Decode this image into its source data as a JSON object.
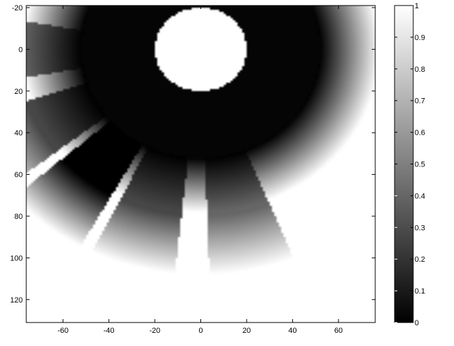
{
  "chart_data": {
    "type": "heatmap",
    "title": "",
    "xlabel": "",
    "ylabel": "",
    "xlim": [
      -76,
      76
    ],
    "ylim": [
      -21,
      131
    ],
    "y_reversed": true,
    "colormap": "gray",
    "color_range": [
      0,
      1
    ],
    "grid": false,
    "x_ticks": [
      "-60",
      "-40",
      "-20",
      "0",
      "20",
      "40",
      "60"
    ],
    "y_ticks": [
      "-20",
      "0",
      "20",
      "40",
      "60",
      "80",
      "100",
      "120"
    ],
    "colorbar_ticks": [
      "0",
      "0.1",
      "0.2",
      "0.3",
      "0.4",
      "0.5",
      "0.6",
      "0.7",
      "0.8",
      "0.9",
      "1"
    ],
    "field": {
      "center": [
        0,
        0
      ],
      "bright_disk_radius": 20,
      "bright_disk_value": 1,
      "background_value": 1,
      "dark_ring_outer_radius": 52,
      "ring_fade_radius": 78,
      "wedge_outer_radius": 108,
      "wedge_fade_length": 28,
      "wedge_angles_deg": [
        78,
        106,
        129,
        152,
        180
      ],
      "wedge_darkness": [
        0.6,
        0.72,
        1.0,
        0.72,
        0.6
      ],
      "note": "angles measured from +x axis, y pointing down (image coords)"
    }
  }
}
